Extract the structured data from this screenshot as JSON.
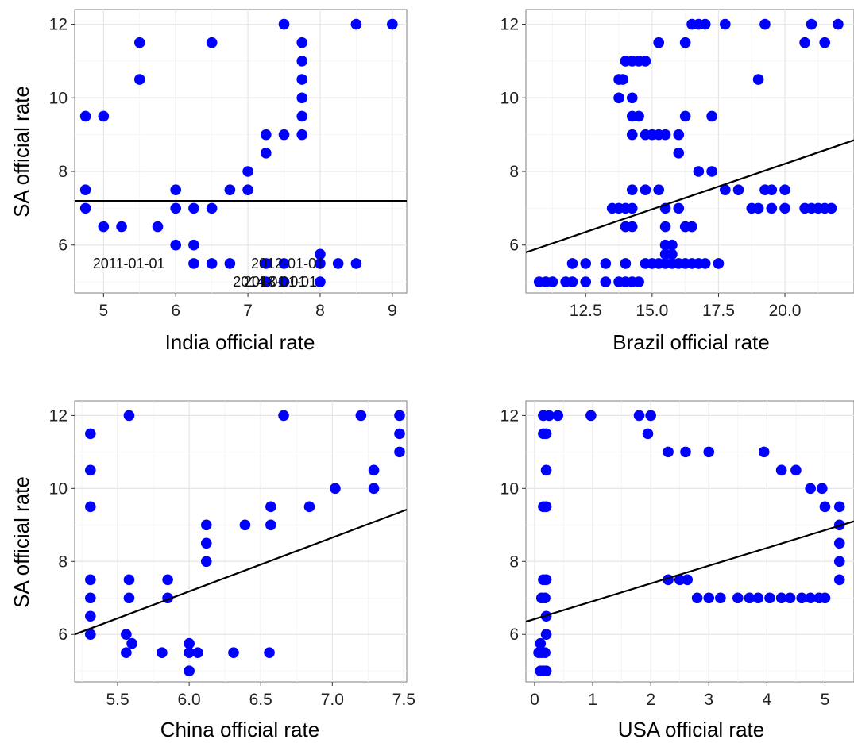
{
  "chart_data": [
    {
      "type": "scatter",
      "xlabel": "India official rate",
      "ylabel": "SA official rate",
      "xlim": [
        4.6,
        9.2
      ],
      "ylim": [
        4.7,
        12.4
      ],
      "x_ticks": [
        "5",
        "6",
        "7",
        "8",
        "9"
      ],
      "y_ticks": [
        "6",
        "8",
        "10",
        "12"
      ],
      "grid": true,
      "point_color": "#0000ff",
      "line_color": "#000000",
      "fit_line": {
        "x": [
          4.6,
          9.2
        ],
        "y": [
          7.2,
          7.2
        ]
      },
      "points": [
        {
          "x": 4.75,
          "y": 9.5
        },
        {
          "x": 5.0,
          "y": 9.5
        },
        {
          "x": 5.5,
          "y": 11.5
        },
        {
          "x": 5.5,
          "y": 10.5
        },
        {
          "x": 6.5,
          "y": 11.5
        },
        {
          "x": 7.5,
          "y": 12.0
        },
        {
          "x": 8.5,
          "y": 12.0
        },
        {
          "x": 9.0,
          "y": 12.0
        },
        {
          "x": 7.75,
          "y": 11.5
        },
        {
          "x": 7.75,
          "y": 11.0
        },
        {
          "x": 7.75,
          "y": 10.5
        },
        {
          "x": 7.75,
          "y": 10.0
        },
        {
          "x": 7.75,
          "y": 9.5
        },
        {
          "x": 7.75,
          "y": 9.0
        },
        {
          "x": 7.5,
          "y": 9.0
        },
        {
          "x": 7.25,
          "y": 9.0
        },
        {
          "x": 7.25,
          "y": 8.5
        },
        {
          "x": 7.0,
          "y": 8.0
        },
        {
          "x": 7.0,
          "y": 7.5
        },
        {
          "x": 6.75,
          "y": 7.5
        },
        {
          "x": 4.75,
          "y": 7.5
        },
        {
          "x": 4.75,
          "y": 7.0
        },
        {
          "x": 5.0,
          "y": 6.5
        },
        {
          "x": 5.25,
          "y": 6.5
        },
        {
          "x": 5.75,
          "y": 6.5
        },
        {
          "x": 6.0,
          "y": 7.5
        },
        {
          "x": 6.0,
          "y": 7.0
        },
        {
          "x": 6.25,
          "y": 7.0
        },
        {
          "x": 6.5,
          "y": 7.0
        },
        {
          "x": 6.0,
          "y": 6.0
        },
        {
          "x": 6.25,
          "y": 6.0
        },
        {
          "x": 6.25,
          "y": 5.5
        },
        {
          "x": 6.5,
          "y": 5.5
        },
        {
          "x": 6.75,
          "y": 5.5
        },
        {
          "x": 7.25,
          "y": 5.5
        },
        {
          "x": 7.5,
          "y": 5.5
        },
        {
          "x": 8.0,
          "y": 5.75
        },
        {
          "x": 8.0,
          "y": 5.5
        },
        {
          "x": 8.25,
          "y": 5.5
        },
        {
          "x": 8.5,
          "y": 5.5
        },
        {
          "x": 7.25,
          "y": 5.0
        },
        {
          "x": 7.5,
          "y": 5.0
        },
        {
          "x": 8.0,
          "y": 5.0
        }
      ],
      "annotations": [
        {
          "text": "2011-01-01",
          "x": 5.35,
          "y": 5.5
        },
        {
          "text": "2012-01-01",
          "x": 7.55,
          "y": 5.5
        },
        {
          "text": "2014-01-01",
          "x": 7.3,
          "y": 5.0
        },
        {
          "text": "2013-01-01",
          "x": 7.45,
          "y": 5.0
        }
      ]
    },
    {
      "type": "scatter",
      "xlabel": "Brazil official rate",
      "ylabel": "",
      "xlim": [
        10.25,
        22.6
      ],
      "ylim": [
        4.7,
        12.4
      ],
      "x_ticks": [
        "12.5",
        "15.0",
        "17.5",
        "20.0"
      ],
      "y_ticks": [
        "6",
        "8",
        "10",
        "12"
      ],
      "grid": true,
      "point_color": "#0000ff",
      "line_color": "#000000",
      "fit_line": {
        "x": [
          10.25,
          22.6
        ],
        "y": [
          5.8,
          8.85
        ]
      },
      "points": [
        {
          "x": 10.75,
          "y": 5.0
        },
        {
          "x": 11.0,
          "y": 5.0
        },
        {
          "x": 11.25,
          "y": 5.0
        },
        {
          "x": 11.75,
          "y": 5.0
        },
        {
          "x": 12.0,
          "y": 5.0
        },
        {
          "x": 12.5,
          "y": 5.0
        },
        {
          "x": 13.25,
          "y": 5.0
        },
        {
          "x": 13.75,
          "y": 5.0
        },
        {
          "x": 14.0,
          "y": 5.0
        },
        {
          "x": 14.25,
          "y": 5.0
        },
        {
          "x": 14.5,
          "y": 5.0
        },
        {
          "x": 12.0,
          "y": 5.5
        },
        {
          "x": 12.5,
          "y": 5.5
        },
        {
          "x": 13.25,
          "y": 5.5
        },
        {
          "x": 14.0,
          "y": 5.5
        },
        {
          "x": 14.75,
          "y": 5.5
        },
        {
          "x": 15.0,
          "y": 5.5
        },
        {
          "x": 15.25,
          "y": 5.5
        },
        {
          "x": 15.5,
          "y": 5.5
        },
        {
          "x": 15.75,
          "y": 5.5
        },
        {
          "x": 16.0,
          "y": 5.5
        },
        {
          "x": 16.25,
          "y": 5.5
        },
        {
          "x": 16.5,
          "y": 5.5
        },
        {
          "x": 16.75,
          "y": 5.5
        },
        {
          "x": 17.0,
          "y": 5.5
        },
        {
          "x": 17.5,
          "y": 5.5
        },
        {
          "x": 15.5,
          "y": 5.75
        },
        {
          "x": 15.75,
          "y": 5.75
        },
        {
          "x": 15.5,
          "y": 6.0
        },
        {
          "x": 15.75,
          "y": 6.0
        },
        {
          "x": 14.0,
          "y": 6.5
        },
        {
          "x": 14.25,
          "y": 6.5
        },
        {
          "x": 15.5,
          "y": 6.5
        },
        {
          "x": 16.25,
          "y": 6.5
        },
        {
          "x": 16.5,
          "y": 6.5
        },
        {
          "x": 13.5,
          "y": 7.0
        },
        {
          "x": 13.75,
          "y": 7.0
        },
        {
          "x": 14.0,
          "y": 7.0
        },
        {
          "x": 14.25,
          "y": 7.0
        },
        {
          "x": 15.5,
          "y": 7.0
        },
        {
          "x": 16.0,
          "y": 7.0
        },
        {
          "x": 18.75,
          "y": 7.0
        },
        {
          "x": 19.0,
          "y": 7.0
        },
        {
          "x": 19.5,
          "y": 7.0
        },
        {
          "x": 20.0,
          "y": 7.0
        },
        {
          "x": 20.75,
          "y": 7.0
        },
        {
          "x": 21.0,
          "y": 7.0
        },
        {
          "x": 21.25,
          "y": 7.0
        },
        {
          "x": 21.5,
          "y": 7.0
        },
        {
          "x": 21.75,
          "y": 7.0
        },
        {
          "x": 14.25,
          "y": 7.5
        },
        {
          "x": 14.75,
          "y": 7.5
        },
        {
          "x": 15.25,
          "y": 7.5
        },
        {
          "x": 17.75,
          "y": 7.5
        },
        {
          "x": 18.25,
          "y": 7.5
        },
        {
          "x": 19.25,
          "y": 7.5
        },
        {
          "x": 19.5,
          "y": 7.5
        },
        {
          "x": 20.0,
          "y": 7.5
        },
        {
          "x": 16.75,
          "y": 8.0
        },
        {
          "x": 17.25,
          "y": 8.0
        },
        {
          "x": 16.0,
          "y": 8.5
        },
        {
          "x": 14.25,
          "y": 9.0
        },
        {
          "x": 14.75,
          "y": 9.0
        },
        {
          "x": 15.0,
          "y": 9.0
        },
        {
          "x": 15.25,
          "y": 9.0
        },
        {
          "x": 15.5,
          "y": 9.0
        },
        {
          "x": 16.0,
          "y": 9.0
        },
        {
          "x": 14.25,
          "y": 9.5
        },
        {
          "x": 14.5,
          "y": 9.5
        },
        {
          "x": 16.25,
          "y": 9.5
        },
        {
          "x": 17.25,
          "y": 9.5
        },
        {
          "x": 13.75,
          "y": 10.0
        },
        {
          "x": 14.25,
          "y": 10.0
        },
        {
          "x": 13.75,
          "y": 10.5
        },
        {
          "x": 13.9,
          "y": 10.5
        },
        {
          "x": 19.0,
          "y": 10.5
        },
        {
          "x": 14.0,
          "y": 11.0
        },
        {
          "x": 14.25,
          "y": 11.0
        },
        {
          "x": 14.5,
          "y": 11.0
        },
        {
          "x": 14.75,
          "y": 11.0
        },
        {
          "x": 15.25,
          "y": 11.5
        },
        {
          "x": 16.25,
          "y": 11.5
        },
        {
          "x": 20.75,
          "y": 11.5
        },
        {
          "x": 21.5,
          "y": 11.5
        },
        {
          "x": 16.5,
          "y": 12.0
        },
        {
          "x": 16.75,
          "y": 12.0
        },
        {
          "x": 17.0,
          "y": 12.0
        },
        {
          "x": 17.75,
          "y": 12.0
        },
        {
          "x": 19.25,
          "y": 12.0
        },
        {
          "x": 21.0,
          "y": 12.0
        },
        {
          "x": 22.0,
          "y": 12.0
        }
      ],
      "annotations": []
    },
    {
      "type": "scatter",
      "xlabel": "China official rate",
      "ylabel": "SA official rate",
      "xlim": [
        5.2,
        7.52
      ],
      "ylim": [
        4.7,
        12.4
      ],
      "x_ticks": [
        "5.5",
        "6.0",
        "6.5",
        "7.0",
        "7.5"
      ],
      "y_ticks": [
        "6",
        "8",
        "10",
        "12"
      ],
      "grid": true,
      "point_color": "#0000ff",
      "line_color": "#000000",
      "fit_line": {
        "x": [
          5.2,
          7.52
        ],
        "y": [
          6.0,
          9.42
        ]
      },
      "points": [
        {
          "x": 5.31,
          "y": 11.5
        },
        {
          "x": 5.31,
          "y": 10.5
        },
        {
          "x": 5.31,
          "y": 9.5
        },
        {
          "x": 5.31,
          "y": 7.5
        },
        {
          "x": 5.31,
          "y": 7.0
        },
        {
          "x": 5.31,
          "y": 6.5
        },
        {
          "x": 5.31,
          "y": 6.0
        },
        {
          "x": 5.58,
          "y": 12.0
        },
        {
          "x": 5.58,
          "y": 7.5
        },
        {
          "x": 5.58,
          "y": 7.0
        },
        {
          "x": 5.56,
          "y": 6.0
        },
        {
          "x": 5.56,
          "y": 5.5
        },
        {
          "x": 5.6,
          "y": 5.75
        },
        {
          "x": 5.85,
          "y": 7.5
        },
        {
          "x": 5.85,
          "y": 7.0
        },
        {
          "x": 5.81,
          "y": 5.5
        },
        {
          "x": 6.0,
          "y": 5.75
        },
        {
          "x": 6.0,
          "y": 5.5
        },
        {
          "x": 6.06,
          "y": 5.5
        },
        {
          "x": 6.0,
          "y": 5.0
        },
        {
          "x": 6.31,
          "y": 5.5
        },
        {
          "x": 6.56,
          "y": 5.5
        },
        {
          "x": 6.12,
          "y": 9.0
        },
        {
          "x": 6.12,
          "y": 8.5
        },
        {
          "x": 6.12,
          "y": 8.0
        },
        {
          "x": 6.39,
          "y": 9.0
        },
        {
          "x": 6.57,
          "y": 9.5
        },
        {
          "x": 6.57,
          "y": 9.0
        },
        {
          "x": 6.66,
          "y": 12.0
        },
        {
          "x": 6.84,
          "y": 9.5
        },
        {
          "x": 7.02,
          "y": 10.0
        },
        {
          "x": 7.2,
          "y": 12.0
        },
        {
          "x": 7.29,
          "y": 10.5
        },
        {
          "x": 7.29,
          "y": 10.0
        },
        {
          "x": 7.47,
          "y": 12.0
        },
        {
          "x": 7.47,
          "y": 11.5
        },
        {
          "x": 7.47,
          "y": 11.0
        }
      ],
      "annotations": []
    },
    {
      "type": "scatter",
      "xlabel": "USA official rate",
      "ylabel": "",
      "xlim": [
        -0.15,
        5.5
      ],
      "ylim": [
        4.7,
        12.4
      ],
      "x_ticks": [
        "0",
        "1",
        "2",
        "3",
        "4",
        "5"
      ],
      "y_ticks": [
        "6",
        "8",
        "10",
        "12"
      ],
      "grid": true,
      "point_color": "#0000ff",
      "line_color": "#000000",
      "fit_line": {
        "x": [
          -0.15,
          5.5
        ],
        "y": [
          6.35,
          9.1
        ]
      },
      "points": [
        {
          "x": 0.1,
          "y": 5.0
        },
        {
          "x": 0.15,
          "y": 5.0
        },
        {
          "x": 0.2,
          "y": 5.0
        },
        {
          "x": 0.07,
          "y": 5.5
        },
        {
          "x": 0.12,
          "y": 5.5
        },
        {
          "x": 0.18,
          "y": 5.5
        },
        {
          "x": 0.1,
          "y": 5.75
        },
        {
          "x": 0.2,
          "y": 6.0
        },
        {
          "x": 0.2,
          "y": 6.5
        },
        {
          "x": 0.12,
          "y": 7.0
        },
        {
          "x": 0.18,
          "y": 7.0
        },
        {
          "x": 0.15,
          "y": 7.5
        },
        {
          "x": 0.2,
          "y": 7.5
        },
        {
          "x": 0.15,
          "y": 9.5
        },
        {
          "x": 0.2,
          "y": 9.5
        },
        {
          "x": 0.2,
          "y": 10.5
        },
        {
          "x": 0.15,
          "y": 11.5
        },
        {
          "x": 0.2,
          "y": 11.5
        },
        {
          "x": 0.15,
          "y": 12.0
        },
        {
          "x": 0.25,
          "y": 12.0
        },
        {
          "x": 0.4,
          "y": 12.0
        },
        {
          "x": 0.97,
          "y": 12.0
        },
        {
          "x": 1.8,
          "y": 12.0
        },
        {
          "x": 2.0,
          "y": 12.0
        },
        {
          "x": 1.95,
          "y": 11.5
        },
        {
          "x": 2.3,
          "y": 11.0
        },
        {
          "x": 2.6,
          "y": 11.0
        },
        {
          "x": 3.0,
          "y": 11.0
        },
        {
          "x": 3.95,
          "y": 11.0
        },
        {
          "x": 4.25,
          "y": 10.5
        },
        {
          "x": 4.5,
          "y": 10.5
        },
        {
          "x": 4.75,
          "y": 10.0
        },
        {
          "x": 4.95,
          "y": 10.0
        },
        {
          "x": 5.0,
          "y": 9.5
        },
        {
          "x": 5.25,
          "y": 9.5
        },
        {
          "x": 5.25,
          "y": 9.0
        },
        {
          "x": 5.25,
          "y": 8.5
        },
        {
          "x": 5.25,
          "y": 8.0
        },
        {
          "x": 5.25,
          "y": 7.5
        },
        {
          "x": 2.3,
          "y": 7.5
        },
        {
          "x": 2.5,
          "y": 7.5
        },
        {
          "x": 2.63,
          "y": 7.5
        },
        {
          "x": 2.8,
          "y": 7.0
        },
        {
          "x": 3.0,
          "y": 7.0
        },
        {
          "x": 3.2,
          "y": 7.0
        },
        {
          "x": 3.5,
          "y": 7.0
        },
        {
          "x": 3.7,
          "y": 7.0
        },
        {
          "x": 3.85,
          "y": 7.0
        },
        {
          "x": 4.05,
          "y": 7.0
        },
        {
          "x": 4.25,
          "y": 7.0
        },
        {
          "x": 4.4,
          "y": 7.0
        },
        {
          "x": 4.6,
          "y": 7.0
        },
        {
          "x": 4.75,
          "y": 7.0
        },
        {
          "x": 4.9,
          "y": 7.0
        },
        {
          "x": 5.0,
          "y": 7.0
        }
      ],
      "annotations": []
    }
  ]
}
